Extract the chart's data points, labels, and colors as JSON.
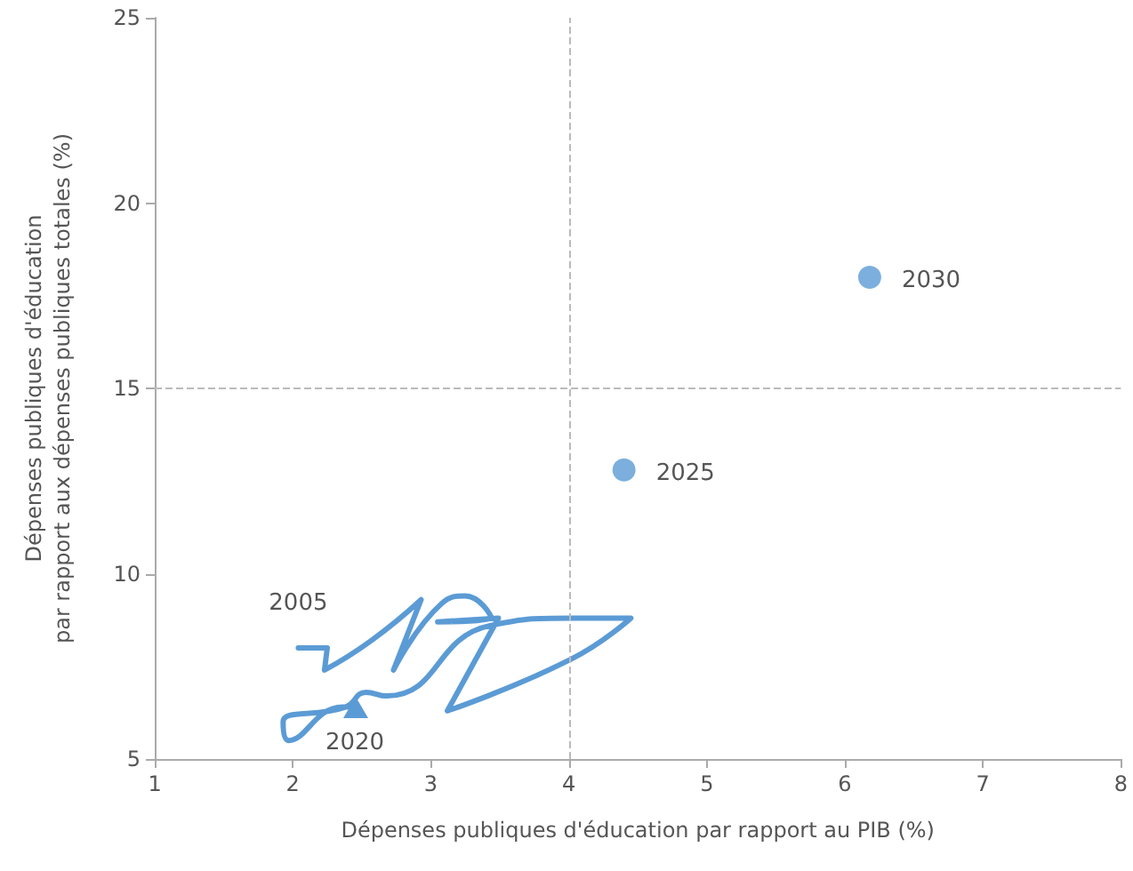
{
  "chart_data": {
    "type": "scatter",
    "xlabel": "Dépenses publiques d'éducation par rapport au PIB (%)",
    "ylabel": "Dépenses publiques d'éducation\npar rapport aux dépenses publiques totales (%)",
    "xlim": [
      1,
      8
    ],
    "xticks": [
      1,
      2,
      3,
      4,
      5,
      6,
      7,
      8
    ],
    "ylim": [
      5,
      25
    ],
    "yticks": [
      5,
      10,
      15,
      20,
      25
    ],
    "grid": false,
    "series": [
      {
        "type": "line",
        "color": "#5b9bd5",
        "marker": "none",
        "x": [
          2.04,
          2.25,
          2.23,
          2.57,
          2.93,
          2.73,
          3.08,
          3.25,
          3.44,
          3.05,
          3.49,
          3.12,
          4.02,
          4.45,
          4.02,
          3.43,
          2.68,
          2.53,
          2.38,
          1.93,
          1.97,
          2.36,
          2.45
        ],
        "values": [
          8.0,
          8.0,
          7.4,
          8.2,
          9.3,
          7.4,
          9.2,
          9.4,
          8.8,
          8.7,
          8.8,
          6.3,
          7.7,
          8.8,
          8.8,
          8.6,
          6.7,
          6.8,
          6.4,
          6.0,
          5.5,
          6.4,
          6.4
        ]
      },
      {
        "color": "#5b9bd5",
        "marker": "circle",
        "x": [
          4.4
        ],
        "values": [
          12.8
        ]
      },
      {
        "color": "#5b9bd5",
        "marker": "circle",
        "x": [
          6.18
        ],
        "values": [
          18.0
        ]
      }
    ],
    "ref_lines": [
      {
        "axis": "x",
        "value": 4,
        "color": "#bbbbbb",
        "line_style": "dashed"
      },
      {
        "axis": "y",
        "value": 15,
        "color": "#bbbbbb",
        "line_style": "dashed"
      }
    ],
    "annotations": [
      {
        "text": "2005",
        "x": 2.04,
        "y": 8.0
      },
      {
        "text": "2020",
        "x": 2.45,
        "y": 6.4
      },
      {
        "text": "2025",
        "x": 4.4,
        "y": 12.8
      },
      {
        "text": "2030",
        "x": 6.18,
        "y": 18.0
      }
    ]
  }
}
